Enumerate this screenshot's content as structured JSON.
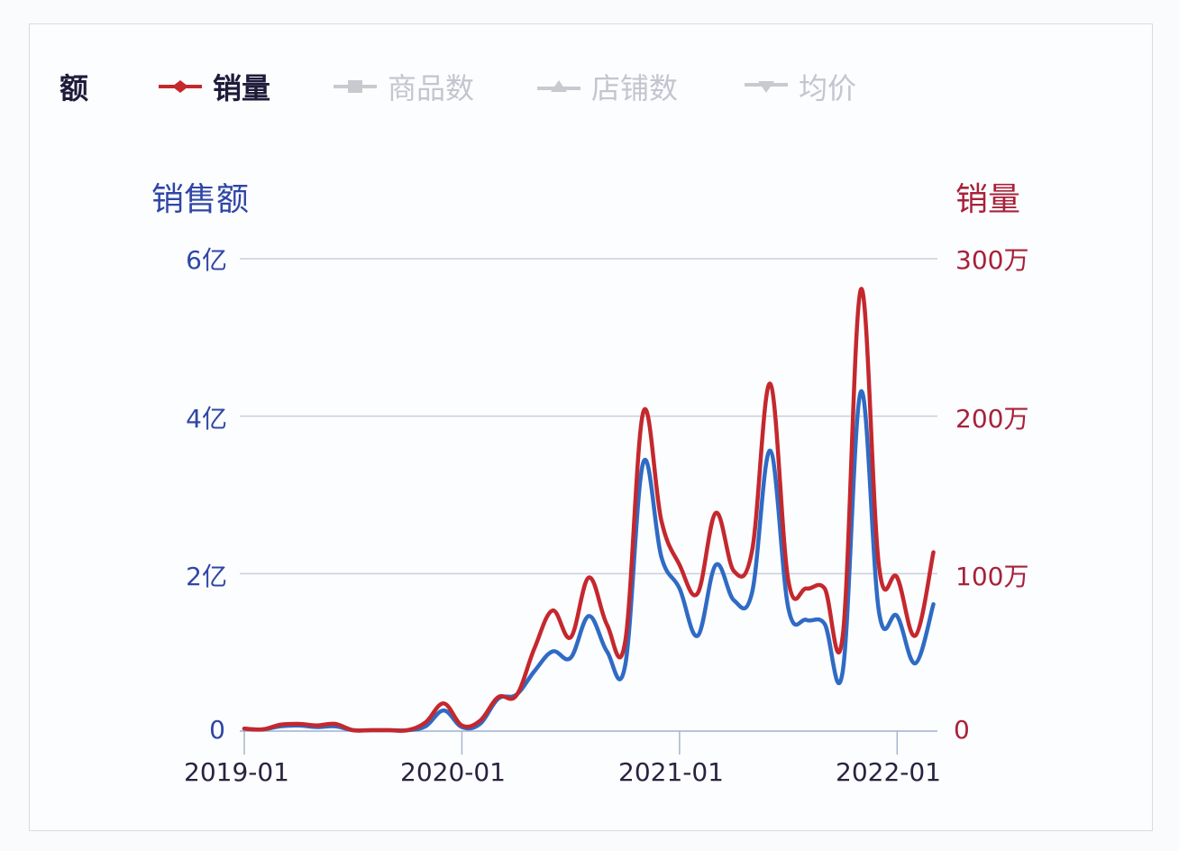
{
  "legend": {
    "items": [
      {
        "label": "额",
        "active": true,
        "color": "#1f1b3a",
        "marker": "none",
        "partial": true
      },
      {
        "label": "销量",
        "active": true,
        "color": "#c4282d",
        "marker": "diamond"
      },
      {
        "label": "商品数",
        "active": false,
        "color": "#c9c9d0",
        "marker": "square"
      },
      {
        "label": "店铺数",
        "active": false,
        "color": "#c9c9d0",
        "marker": "triangle-up"
      },
      {
        "label": "均价",
        "active": false,
        "color": "#c9c9d0",
        "marker": "triangle-down"
      }
    ]
  },
  "axes": {
    "left_title": "销售额",
    "right_title": "销量",
    "left_color": "#2f46a6",
    "right_color": "#a8213a",
    "left_ticks": [
      "0",
      "2亿",
      "4亿",
      "6亿"
    ],
    "right_ticks": [
      "0",
      "100万",
      "200万",
      "300万"
    ],
    "x_ticks": [
      "2019-01",
      "2020-01",
      "2021-01",
      "2022-01"
    ]
  },
  "chart_data": {
    "type": "line",
    "title": "",
    "xlabel": "",
    "ylabel": "销售额",
    "y2label": "销量",
    "ylim": [
      0,
      6
    ],
    "y_unit": "亿",
    "y2lim": [
      0,
      300
    ],
    "y2_unit": "万",
    "grid": true,
    "legend_position": "top",
    "x": [
      "2019-01",
      "2019-02",
      "2019-03",
      "2019-04",
      "2019-05",
      "2019-06",
      "2019-07",
      "2019-08",
      "2019-09",
      "2019-10",
      "2019-11",
      "2019-12",
      "2020-01",
      "2020-02",
      "2020-03",
      "2020-04",
      "2020-05",
      "2020-06",
      "2020-07",
      "2020-08",
      "2020-09",
      "2020-10",
      "2020-11",
      "2020-12",
      "2021-01",
      "2021-02",
      "2021-03",
      "2021-04",
      "2021-05",
      "2021-06",
      "2021-07",
      "2021-08",
      "2021-09",
      "2021-10",
      "2021-11",
      "2021-12",
      "2022-01",
      "2022-02",
      "2022-03"
    ],
    "series": [
      {
        "name": "销售额",
        "axis": "left",
        "unit": "亿",
        "color": "#2f6bc4",
        "values": [
          0.02,
          0.01,
          0.05,
          0.06,
          0.04,
          0.05,
          0,
          0,
          0,
          0,
          0.05,
          0.25,
          0.04,
          0.08,
          0.4,
          0.45,
          0.75,
          1.0,
          0.92,
          1.45,
          1.0,
          0.82,
          3.4,
          2.2,
          1.8,
          1.2,
          2.1,
          1.65,
          1.75,
          3.55,
          1.55,
          1.4,
          1.35,
          0.75,
          4.3,
          1.5,
          1.45,
          0.85,
          1.6
        ]
      },
      {
        "name": "销量",
        "axis": "right",
        "unit": "万",
        "color": "#c4282d",
        "values": [
          1,
          0.5,
          3.5,
          4,
          3,
          4,
          0,
          0,
          0,
          0,
          5,
          17,
          3,
          6,
          21,
          22,
          52,
          76,
          59,
          97,
          67,
          56,
          202,
          133,
          105,
          87,
          138,
          101,
          114,
          220,
          95,
          90,
          90,
          60,
          280,
          104,
          97,
          60,
          113
        ]
      }
    ]
  }
}
